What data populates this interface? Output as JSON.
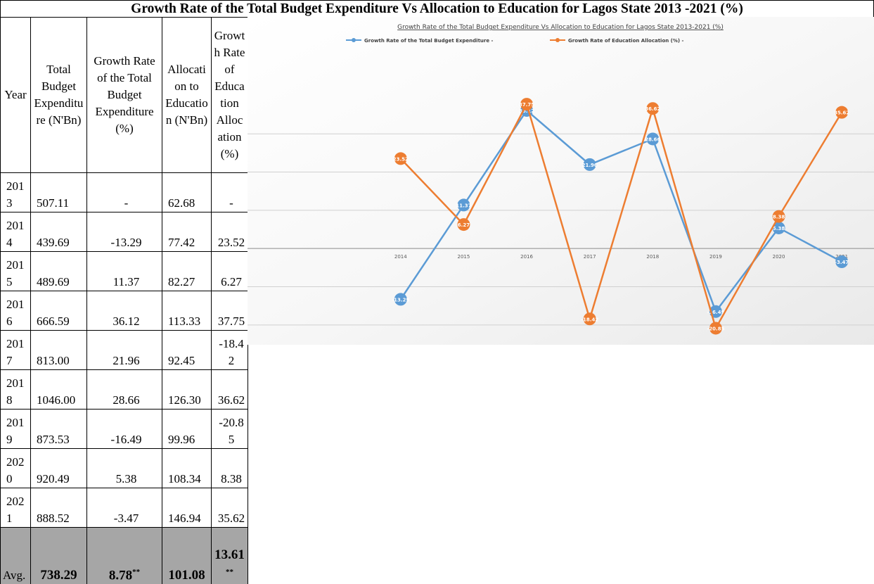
{
  "title": "Growth Rate of the  Total Budget Expenditure Vs  Allocation to Education for Lagos State 2013  -2021 (%)",
  "table": {
    "headers": [
      "Year",
      "Total Budget Expenditure (N'Bn)",
      "Growth Rate of the Total Budget Expenditure (%)",
      "Allocation to Education (N'Bn)",
      "Growth Rate of Education Allocation (%)"
    ],
    "rows": [
      [
        "2013",
        "507.11",
        "-",
        "62.68",
        "-"
      ],
      [
        "2014",
        "439.69",
        "-13.29",
        "77.42",
        "23.52"
      ],
      [
        "2015",
        "489.69",
        "11.37",
        "82.27",
        "6.27"
      ],
      [
        "2016",
        "666.59",
        "36.12",
        "113.33",
        "37.75"
      ],
      [
        "2017",
        "813.00",
        "21.96",
        "92.45",
        "-18.42"
      ],
      [
        "2018",
        "1046.00",
        "28.66",
        "126.30",
        "36.62"
      ],
      [
        "2019",
        "873.53",
        "-16.49",
        "99.96",
        "-20.85"
      ],
      [
        "2020",
        "920.49",
        "5.38",
        "108.34",
        "8.38"
      ],
      [
        "2021",
        "888.52",
        "-3.47",
        "146.94",
        "35.62"
      ]
    ],
    "average": [
      {
        "text": "Avg."
      },
      {
        "text": "738.29"
      },
      {
        "text": "8.78",
        "sup": "**"
      },
      {
        "text": "101.08"
      },
      {
        "text": "13.61",
        "sup": "**"
      }
    ]
  },
  "chart_data": {
    "type": "line",
    "title": "Growth Rate of the Total Budget Expenditure  Vs Allocation to Education for Lagos State 2013-2021 (%)",
    "categories": [
      "2014",
      "2015",
      "2016",
      "2017",
      "2018",
      "2019",
      "2020",
      "2021"
    ],
    "series": [
      {
        "name": "Growth Rate of the Total Budget Expenditure -",
        "color": "#5b9bd5",
        "values": [
          -13.29,
          11.37,
          36.12,
          21.96,
          28.66,
          -16.49,
          5.38,
          -3.47
        ]
      },
      {
        "name": "Growth Rate of Education Allocation (%) -",
        "color": "#ed7d31",
        "values": [
          23.52,
          6.27,
          37.75,
          -18.42,
          36.62,
          -20.85,
          8.38,
          35.62
        ]
      }
    ],
    "ylim": [
      -25,
      42
    ],
    "yticks": [
      -20,
      -10,
      0,
      10,
      20,
      30
    ],
    "grid": true
  }
}
